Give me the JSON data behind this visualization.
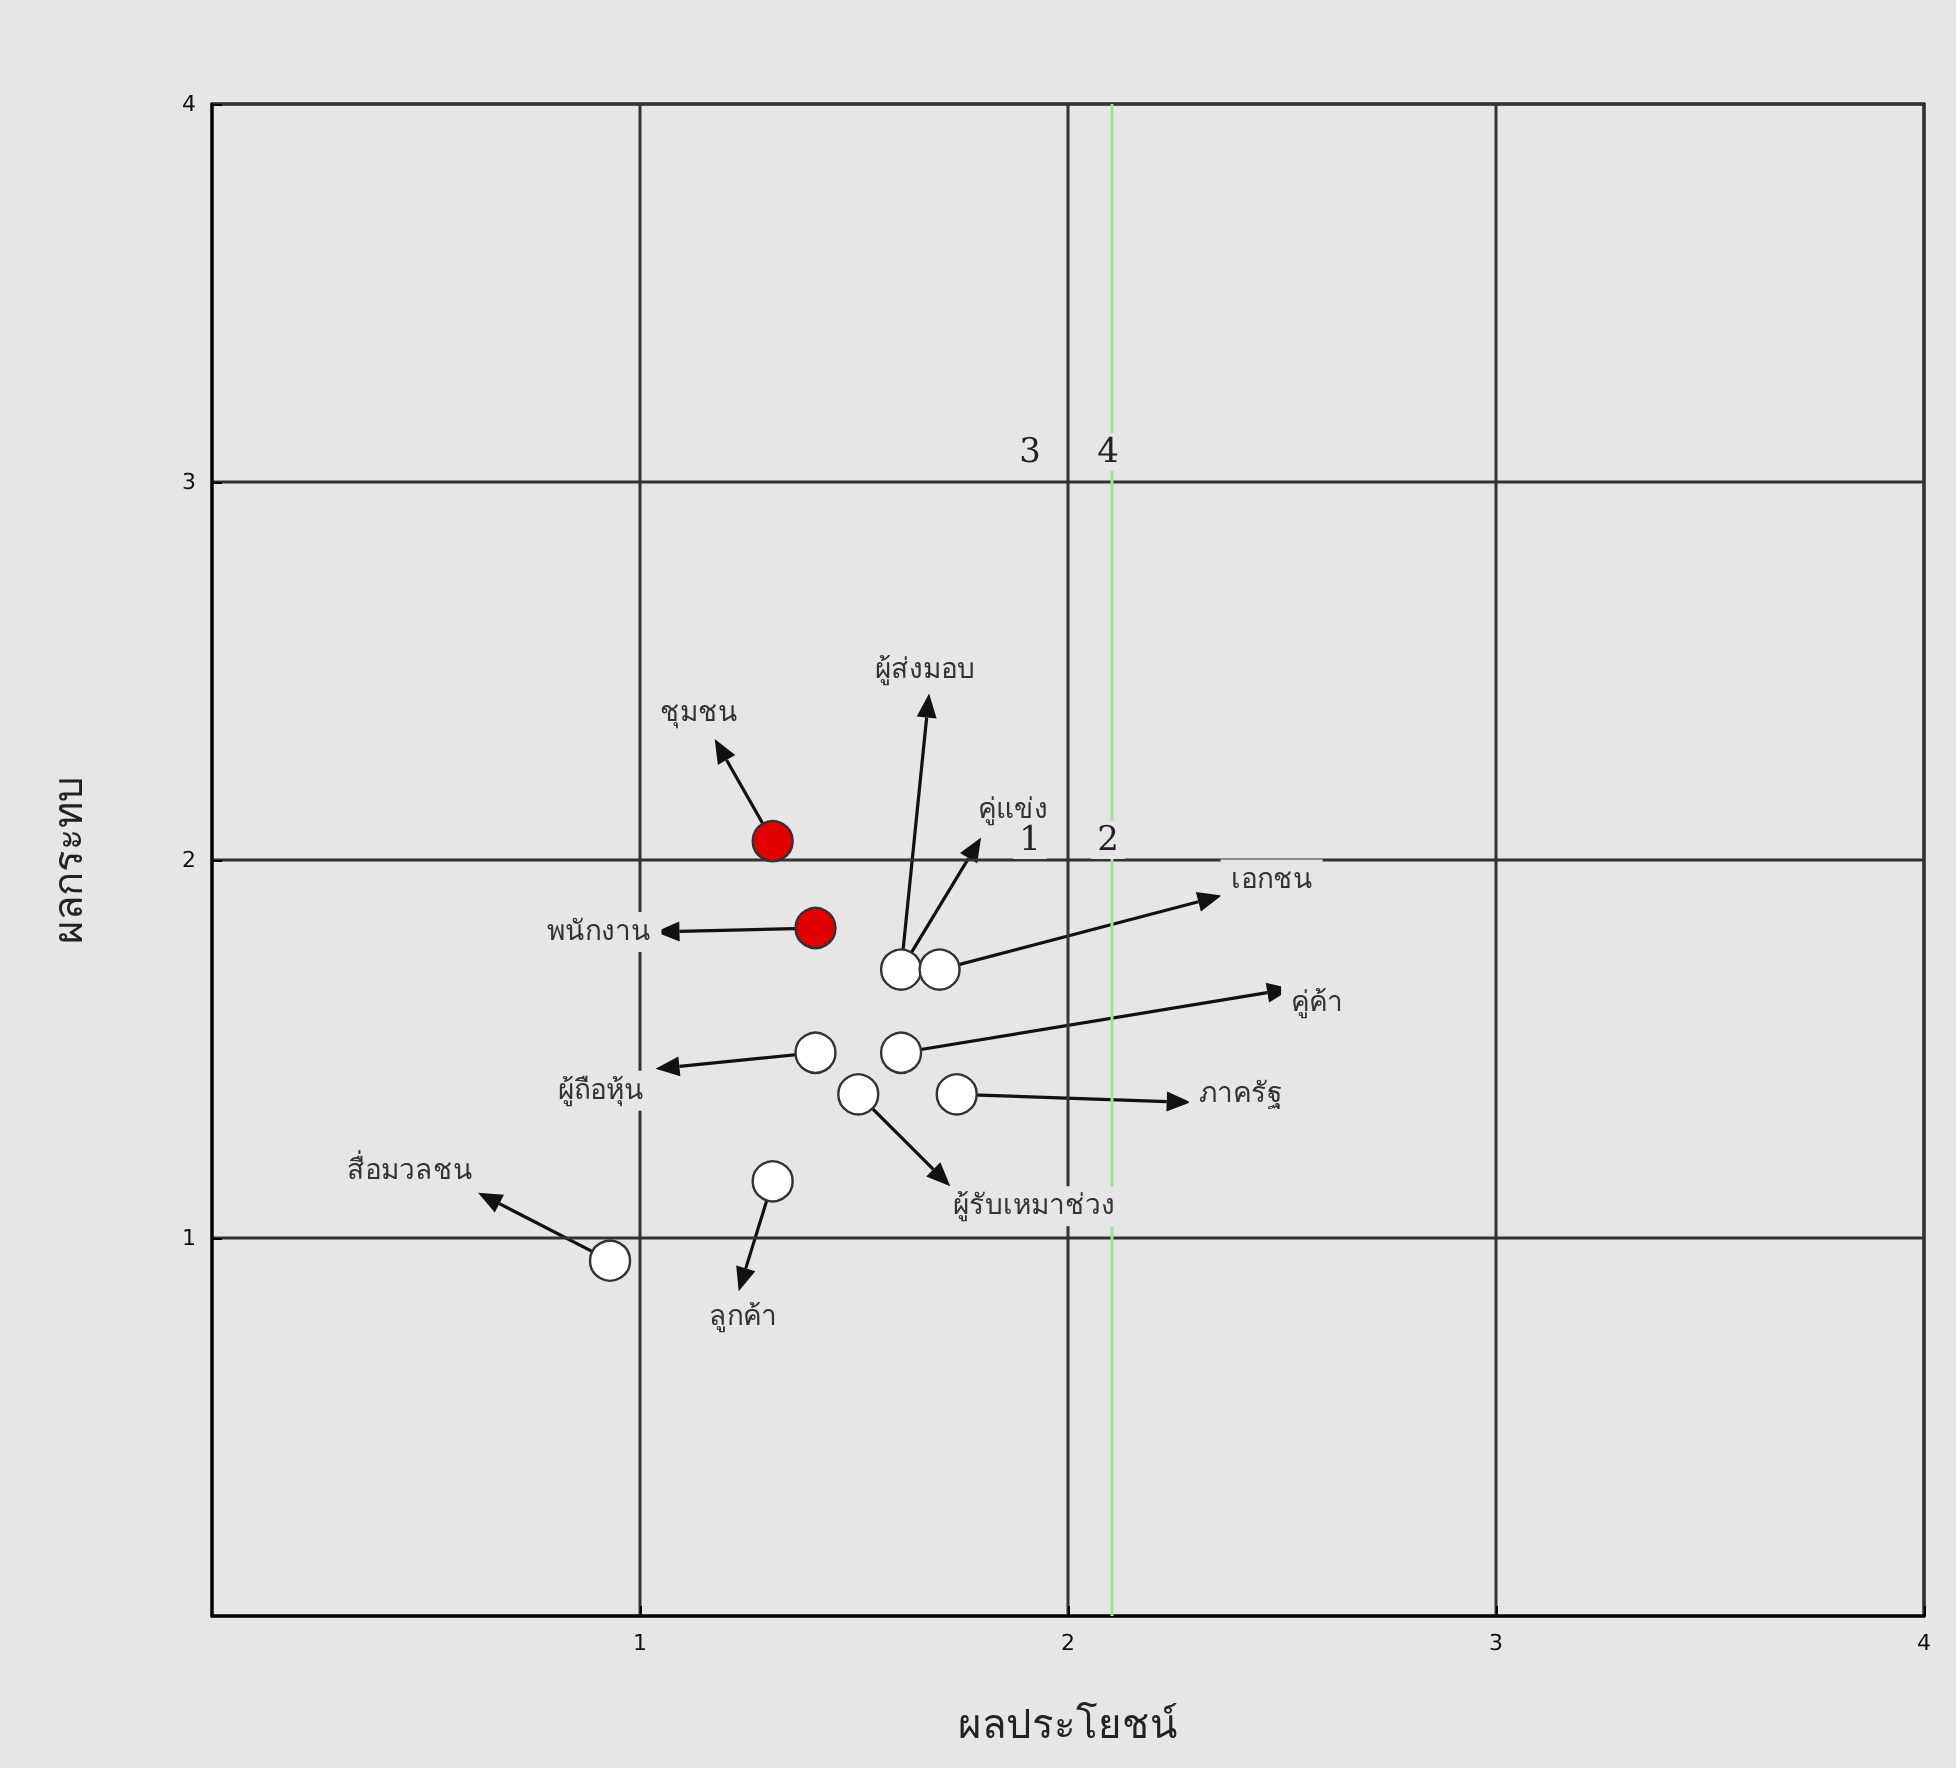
{
  "chart_data": {
    "type": "scatter",
    "xlabel": "ผลประโยชน์",
    "ylabel": "ผลกระทบ",
    "xlim": [
      0,
      4
    ],
    "ylim": [
      0,
      4
    ],
    "xticks": [
      1,
      2,
      3,
      4
    ],
    "yticks": [
      1,
      2,
      3,
      4
    ],
    "grid": true,
    "marker": "circle",
    "series": [
      {
        "color": "#e00000",
        "x": [
          1.31,
          1.41
        ],
        "values": [
          2.05,
          1.82
        ]
      },
      {
        "color": "#ffffff",
        "x": [
          1.61,
          1.7,
          1.41,
          1.61,
          1.51,
          1.74,
          1.31,
          0.93
        ],
        "values": [
          1.71,
          1.71,
          1.49,
          1.49,
          1.38,
          1.38,
          1.15,
          0.94
        ]
      }
    ],
    "ref_lines": [
      {
        "axis": "x",
        "value": 2.1,
        "color": "#9fdf9f"
      }
    ],
    "annotations": [
      {
        "text": "ชุมชน",
        "x": 1.31,
        "y": 2.05
      },
      {
        "text": "พนักงาน",
        "x": 1.41,
        "y": 1.82
      },
      {
        "text": "ผู้ส่งมอบ",
        "x": 1.61,
        "y": 1.71
      },
      {
        "text": "คู่แข่ง",
        "x": 1.61,
        "y": 1.71
      },
      {
        "text": "เอกชน",
        "x": 1.7,
        "y": 1.71
      },
      {
        "text": "คู่ค้า",
        "x": 1.61,
        "y": 1.49
      },
      {
        "text": "ภาครัฐ",
        "x": 1.74,
        "y": 1.38
      },
      {
        "text": "ผู้ถือหุ้น",
        "x": 1.41,
        "y": 1.49
      },
      {
        "text": "ผู้รับเหมาช่วง",
        "x": 1.51,
        "y": 1.38
      },
      {
        "text": "สื่อมวลชน",
        "x": 0.93,
        "y": 0.94
      },
      {
        "text": "ลูกค้า",
        "x": 1.31,
        "y": 1.15
      },
      "1",
      "2",
      "3",
      "4"
    ]
  }
}
